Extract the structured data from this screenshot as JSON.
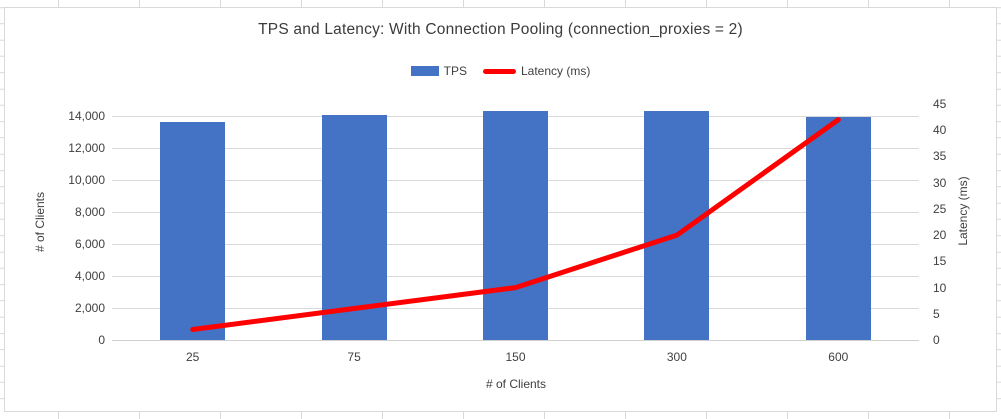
{
  "chart_data": {
    "type": "combo-bar-line",
    "title": "TPS and Latency: With Connection Pooling (connection_proxies = 2)",
    "categories": [
      "25",
      "75",
      "150",
      "300",
      "600"
    ],
    "series": [
      {
        "name": "TPS",
        "type": "bar",
        "axis": "left",
        "color": "#4472C4",
        "values": [
          13600,
          14050,
          14300,
          14300,
          13900
        ]
      },
      {
        "name": "Latency (ms)",
        "type": "line",
        "axis": "right",
        "color": "#FF0000",
        "values": [
          2,
          6,
          10,
          20,
          42
        ]
      }
    ],
    "x_axis": {
      "title": "# of Clients",
      "tick_labels": [
        "25",
        "75",
        "150",
        "300",
        "600"
      ]
    },
    "left_axis": {
      "title": "# of Clients",
      "min": 0,
      "max": 14000,
      "step": 2000,
      "tick_values": [
        0,
        2000,
        4000,
        6000,
        8000,
        10000,
        12000,
        14000
      ],
      "tick_labels": [
        "0",
        "2,000",
        "4,000",
        "6,000",
        "8,000",
        "10,000",
        "12,000",
        "14,000"
      ]
    },
    "right_axis": {
      "title": "Latency (ms)",
      "min": 0,
      "max": 45,
      "step": 5,
      "tick_values": [
        0,
        5,
        10,
        15,
        20,
        25,
        30,
        35,
        40,
        45
      ],
      "tick_labels": [
        "0",
        "5",
        "10",
        "15",
        "20",
        "25",
        "30",
        "35",
        "40",
        "45"
      ]
    },
    "legend_position": "top",
    "grid": true,
    "colors": {
      "bar": "#4472C4",
      "line": "#FF0000",
      "gridline": "#D9D9D9",
      "axis_line": "#CFCFCF",
      "text": "#404040",
      "title_text": "#3B3B3B",
      "chart_border": "#D9D9D9",
      "background": "#FFFFFF"
    }
  }
}
